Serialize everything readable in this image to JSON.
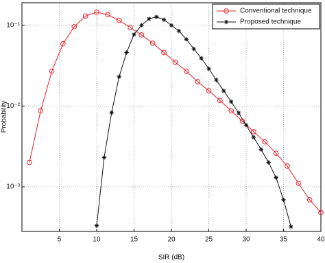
{
  "chart_data": {
    "type": "line",
    "xlabel": "SIR (dB)",
    "ylabel": "Probability",
    "xlim": [
      0,
      40
    ],
    "xticks": [
      5,
      10,
      15,
      20,
      25,
      30,
      35,
      40
    ],
    "ylim": [
      0.00028,
      0.19
    ],
    "ylog": true,
    "yticks": [
      {
        "value": 0.001,
        "label": "10⁻³"
      },
      {
        "value": 0.01,
        "label": "10⁻²"
      },
      {
        "value": 0.1,
        "label": "10⁻¹"
      }
    ],
    "grid": true,
    "legend": "northeast",
    "series": [
      {
        "name": "Conventional technique",
        "color": "#e8202a",
        "marker": "circle",
        "x": [
          1,
          2.5,
          4,
          5.5,
          7,
          8.5,
          10,
          11.5,
          13,
          14.5,
          16,
          17.5,
          19,
          20.5,
          22,
          23.5,
          25,
          26.5,
          28,
          29.5,
          31,
          32.5,
          34,
          35.5,
          37,
          38.5,
          40
        ],
        "values": [
          0.002,
          0.0087,
          0.027,
          0.059,
          0.096,
          0.13,
          0.145,
          0.135,
          0.115,
          0.094,
          0.076,
          0.06,
          0.046,
          0.035,
          0.027,
          0.02,
          0.0155,
          0.0117,
          0.0087,
          0.0065,
          0.0048,
          0.0036,
          0.0026,
          0.0018,
          0.0011,
          0.00069,
          0.00048
        ]
      },
      {
        "name": "Proposed technique",
        "color": "#111111",
        "marker": "star",
        "x": [
          10,
          11,
          12,
          13,
          14,
          15,
          16,
          17,
          18,
          19,
          20,
          21,
          22,
          23,
          24,
          25,
          26,
          27,
          28,
          29,
          30,
          31,
          32,
          33,
          34,
          35,
          36
        ],
        "values": [
          0.00033,
          0.0023,
          0.0083,
          0.023,
          0.046,
          0.077,
          0.1,
          0.12,
          0.127,
          0.117,
          0.1,
          0.085,
          0.067,
          0.051,
          0.039,
          0.029,
          0.021,
          0.0154,
          0.0113,
          0.0082,
          0.0058,
          0.0041,
          0.0029,
          0.002,
          0.0013,
          0.00069,
          0.00032
        ]
      }
    ]
  }
}
